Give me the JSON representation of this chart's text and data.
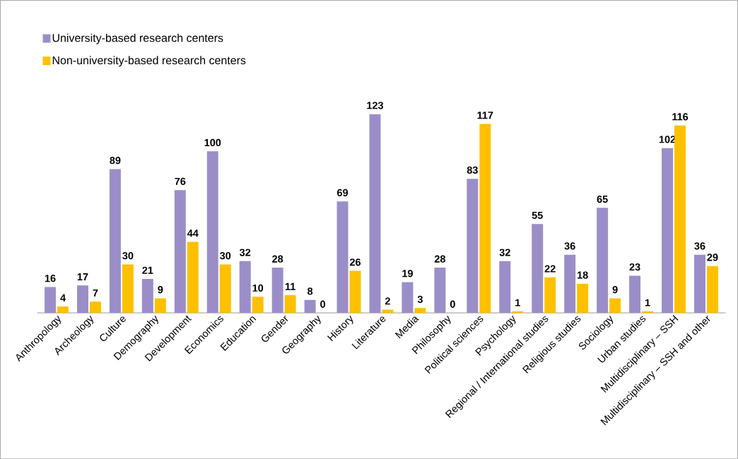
{
  "chart_data": {
    "type": "bar",
    "categories": [
      "Anthropology",
      "Archeology",
      "Culture",
      "Demography",
      "Development",
      "Economics",
      "Education",
      "Gender",
      "Geography",
      "History",
      "Literature",
      "Media",
      "Philosophy",
      "Political sciences",
      "Psychology",
      "Regional / International studies",
      "Religious studies",
      "Sociology",
      "Urban studies",
      "Multidisciplinary – SSH",
      "Multidisciplinary – SSH and other"
    ],
    "series": [
      {
        "name": "University-based research centers",
        "color": "#9b8ec8",
        "values": [
          16,
          17,
          89,
          21,
          76,
          100,
          32,
          28,
          8,
          69,
          123,
          19,
          28,
          83,
          32,
          55,
          36,
          65,
          23,
          102,
          36
        ]
      },
      {
        "name": "Non-university-based research centers",
        "color": "#ffc000",
        "values": [
          4,
          7,
          30,
          9,
          44,
          30,
          10,
          11,
          0,
          26,
          2,
          3,
          0,
          117,
          1,
          22,
          18,
          9,
          1,
          116,
          29
        ]
      }
    ],
    "data_labels": true,
    "legend": "top left"
  }
}
